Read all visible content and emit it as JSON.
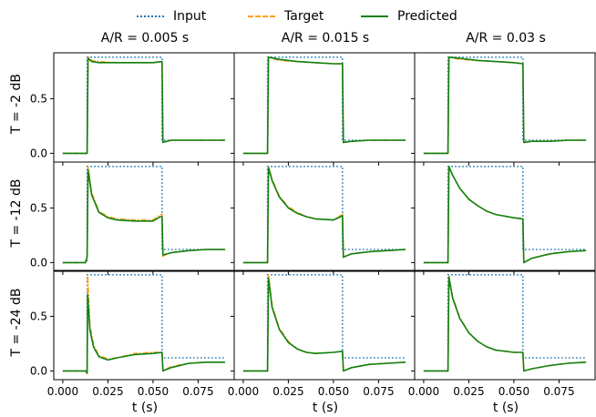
{
  "chart_data": {
    "type": "line",
    "legend": {
      "placement": "top-center",
      "entries": [
        "Input",
        "Target",
        "Predicted"
      ]
    },
    "colors": {
      "Input": "#1f77b4",
      "Target": "#ff9f1c",
      "Predicted": "#108010"
    },
    "column_titles": [
      "A/R = 0.005 s",
      "A/R = 0.015 s",
      "A/R = 0.03 s"
    ],
    "row_labels": [
      "T = -2 dB",
      "T = -12 dB",
      "T = -24 dB"
    ],
    "xlabel": "t (s)",
    "xlim": [
      -0.005,
      0.095
    ],
    "ylim": [
      -0.08,
      0.92
    ],
    "x_ticks": [
      "0.000",
      "0.025",
      "0.050",
      "0.075"
    ],
    "x_tick_values": [
      0.0,
      0.025,
      0.05,
      0.075
    ],
    "y_ticks": [
      "0.0",
      "0.5"
    ],
    "y_tick_values": [
      0.0,
      0.5
    ],
    "grid": false,
    "shared_input": {
      "description_free": true,
      "x": [
        0.0,
        0.0135,
        0.0135,
        0.055,
        0.055,
        0.09
      ],
      "y": [
        0.0,
        0.0,
        0.88,
        0.88,
        0.12,
        0.12
      ]
    },
    "panels": [
      {
        "row": 0,
        "col": 0,
        "predicted": {
          "x": [
            0.0,
            0.0135,
            0.014,
            0.016,
            0.02,
            0.03,
            0.04,
            0.05,
            0.055,
            0.0555,
            0.06,
            0.07,
            0.08,
            0.09
          ],
          "y": [
            0.0,
            0.0,
            0.87,
            0.84,
            0.83,
            0.83,
            0.83,
            0.83,
            0.84,
            0.1,
            0.12,
            0.12,
            0.12,
            0.12
          ]
        },
        "target": {
          "x": [
            0.0,
            0.0135,
            0.014,
            0.016,
            0.02,
            0.03,
            0.04,
            0.05,
            0.055,
            0.0555,
            0.06,
            0.07,
            0.08,
            0.09
          ],
          "y": [
            0.0,
            0.0,
            0.89,
            0.85,
            0.84,
            0.83,
            0.83,
            0.83,
            0.84,
            0.1,
            0.12,
            0.12,
            0.12,
            0.12
          ]
        }
      },
      {
        "row": 0,
        "col": 1,
        "predicted": {
          "x": [
            0.0,
            0.0135,
            0.014,
            0.02,
            0.03,
            0.04,
            0.05,
            0.055,
            0.0555,
            0.06,
            0.07,
            0.08,
            0.09
          ],
          "y": [
            0.0,
            0.0,
            0.88,
            0.86,
            0.84,
            0.83,
            0.82,
            0.82,
            0.1,
            0.11,
            0.12,
            0.12,
            0.12
          ]
        },
        "target": {
          "x": [
            0.0,
            0.0135,
            0.014,
            0.02,
            0.03,
            0.04,
            0.05,
            0.055,
            0.0555,
            0.06,
            0.07,
            0.08,
            0.09
          ],
          "y": [
            0.0,
            0.0,
            0.88,
            0.85,
            0.84,
            0.83,
            0.82,
            0.82,
            0.1,
            0.11,
            0.12,
            0.12,
            0.12
          ]
        }
      },
      {
        "row": 0,
        "col": 2,
        "predicted": {
          "x": [
            0.0,
            0.0135,
            0.014,
            0.02,
            0.03,
            0.04,
            0.05,
            0.055,
            0.0555,
            0.06,
            0.07,
            0.08,
            0.09
          ],
          "y": [
            0.0,
            0.0,
            0.88,
            0.87,
            0.85,
            0.84,
            0.83,
            0.82,
            0.1,
            0.11,
            0.11,
            0.12,
            0.12
          ]
        },
        "target": {
          "x": [
            0.0,
            0.0135,
            0.014,
            0.02,
            0.03,
            0.04,
            0.05,
            0.055,
            0.0555,
            0.06,
            0.07,
            0.08,
            0.09
          ],
          "y": [
            0.0,
            0.0,
            0.88,
            0.86,
            0.85,
            0.84,
            0.83,
            0.82,
            0.1,
            0.11,
            0.11,
            0.12,
            0.12
          ]
        }
      },
      {
        "row": 1,
        "col": 0,
        "predicted": {
          "x": [
            0.0,
            0.0125,
            0.0135,
            0.014,
            0.016,
            0.02,
            0.025,
            0.03,
            0.04,
            0.05,
            0.054,
            0.055,
            0.0555,
            0.06,
            0.07,
            0.08,
            0.09
          ],
          "y": [
            0.0,
            0.0,
            0.05,
            0.85,
            0.62,
            0.46,
            0.41,
            0.39,
            0.38,
            0.38,
            0.42,
            0.42,
            0.07,
            0.09,
            0.11,
            0.12,
            0.12
          ]
        },
        "target": {
          "x": [
            0.0,
            0.0125,
            0.0135,
            0.014,
            0.016,
            0.02,
            0.025,
            0.03,
            0.04,
            0.05,
            0.054,
            0.055,
            0.0555,
            0.06,
            0.07,
            0.08,
            0.09
          ],
          "y": [
            0.0,
            0.0,
            0.05,
            0.88,
            0.64,
            0.47,
            0.42,
            0.4,
            0.39,
            0.39,
            0.44,
            0.44,
            0.06,
            0.09,
            0.11,
            0.12,
            0.12
          ]
        }
      },
      {
        "row": 1,
        "col": 1,
        "predicted": {
          "x": [
            0.0,
            0.0135,
            0.014,
            0.016,
            0.02,
            0.025,
            0.03,
            0.035,
            0.04,
            0.05,
            0.054,
            0.055,
            0.0555,
            0.06,
            0.07,
            0.08,
            0.09
          ],
          "y": [
            0.0,
            0.0,
            0.87,
            0.75,
            0.6,
            0.5,
            0.45,
            0.42,
            0.4,
            0.39,
            0.42,
            0.43,
            0.05,
            0.08,
            0.1,
            0.11,
            0.12
          ]
        },
        "target": {
          "x": [
            0.0,
            0.0135,
            0.014,
            0.016,
            0.02,
            0.025,
            0.03,
            0.035,
            0.04,
            0.05,
            0.054,
            0.055,
            0.0555,
            0.06,
            0.07,
            0.08,
            0.09
          ],
          "y": [
            0.0,
            0.0,
            0.88,
            0.76,
            0.61,
            0.51,
            0.46,
            0.42,
            0.4,
            0.39,
            0.43,
            0.44,
            0.05,
            0.08,
            0.1,
            0.11,
            0.12
          ]
        }
      },
      {
        "row": 1,
        "col": 2,
        "predicted": {
          "x": [
            0.0,
            0.0135,
            0.014,
            0.016,
            0.02,
            0.025,
            0.03,
            0.035,
            0.04,
            0.05,
            0.055,
            0.0555,
            0.06,
            0.07,
            0.08,
            0.09
          ],
          "y": [
            0.0,
            0.0,
            0.88,
            0.8,
            0.68,
            0.58,
            0.52,
            0.47,
            0.44,
            0.41,
            0.4,
            0.0,
            0.04,
            0.08,
            0.1,
            0.11
          ]
        },
        "target": {
          "x": [
            0.0,
            0.0135,
            0.014,
            0.016,
            0.02,
            0.025,
            0.03,
            0.035,
            0.04,
            0.05,
            0.055,
            0.0555,
            0.06,
            0.07,
            0.08,
            0.09
          ],
          "y": [
            0.0,
            0.0,
            0.88,
            0.8,
            0.68,
            0.58,
            0.52,
            0.47,
            0.44,
            0.41,
            0.4,
            0.0,
            0.04,
            0.08,
            0.1,
            0.11
          ]
        }
      },
      {
        "row": 2,
        "col": 0,
        "predicted": {
          "x": [
            0.0,
            0.0125,
            0.0135,
            0.0138,
            0.015,
            0.017,
            0.02,
            0.025,
            0.03,
            0.04,
            0.05,
            0.055,
            0.0555,
            0.06,
            0.07,
            0.08,
            0.09
          ],
          "y": [
            0.0,
            0.0,
            -0.02,
            0.7,
            0.38,
            0.22,
            0.13,
            0.1,
            0.12,
            0.15,
            0.16,
            0.17,
            0.0,
            0.03,
            0.07,
            0.08,
            0.08
          ]
        },
        "target": {
          "x": [
            0.0,
            0.0125,
            0.0135,
            0.0138,
            0.015,
            0.017,
            0.02,
            0.025,
            0.03,
            0.04,
            0.05,
            0.055,
            0.0555,
            0.06,
            0.07,
            0.08,
            0.09
          ],
          "y": [
            0.0,
            0.0,
            -0.02,
            0.88,
            0.42,
            0.24,
            0.14,
            0.11,
            0.12,
            0.16,
            0.17,
            0.17,
            0.0,
            0.04,
            0.07,
            0.08,
            0.08
          ]
        }
      },
      {
        "row": 2,
        "col": 1,
        "predicted": {
          "x": [
            0.0,
            0.0135,
            0.014,
            0.016,
            0.02,
            0.025,
            0.03,
            0.035,
            0.04,
            0.05,
            0.055,
            0.0555,
            0.06,
            0.07,
            0.08,
            0.09
          ],
          "y": [
            0.0,
            0.0,
            0.85,
            0.58,
            0.38,
            0.26,
            0.2,
            0.17,
            0.16,
            0.17,
            0.18,
            0.0,
            0.03,
            0.06,
            0.07,
            0.08
          ]
        },
        "target": {
          "x": [
            0.0,
            0.0135,
            0.014,
            0.016,
            0.02,
            0.025,
            0.03,
            0.035,
            0.04,
            0.05,
            0.055,
            0.0555,
            0.06,
            0.07,
            0.08,
            0.09
          ],
          "y": [
            0.0,
            0.0,
            0.88,
            0.6,
            0.39,
            0.27,
            0.2,
            0.17,
            0.16,
            0.17,
            0.18,
            0.0,
            0.03,
            0.06,
            0.07,
            0.08
          ]
        }
      },
      {
        "row": 2,
        "col": 2,
        "predicted": {
          "x": [
            0.0,
            0.0135,
            0.014,
            0.016,
            0.02,
            0.025,
            0.03,
            0.035,
            0.04,
            0.05,
            0.055,
            0.0555,
            0.06,
            0.07,
            0.08,
            0.09
          ],
          "y": [
            0.0,
            0.0,
            0.86,
            0.67,
            0.48,
            0.35,
            0.27,
            0.22,
            0.19,
            0.17,
            0.17,
            0.0,
            0.02,
            0.05,
            0.07,
            0.08
          ]
        },
        "target": {
          "x": [
            0.0,
            0.0135,
            0.014,
            0.016,
            0.02,
            0.025,
            0.03,
            0.035,
            0.04,
            0.05,
            0.055,
            0.0555,
            0.06,
            0.07,
            0.08,
            0.09
          ],
          "y": [
            0.0,
            0.0,
            0.87,
            0.68,
            0.49,
            0.35,
            0.27,
            0.22,
            0.19,
            0.17,
            0.17,
            0.0,
            0.02,
            0.05,
            0.07,
            0.08
          ]
        }
      }
    ]
  }
}
